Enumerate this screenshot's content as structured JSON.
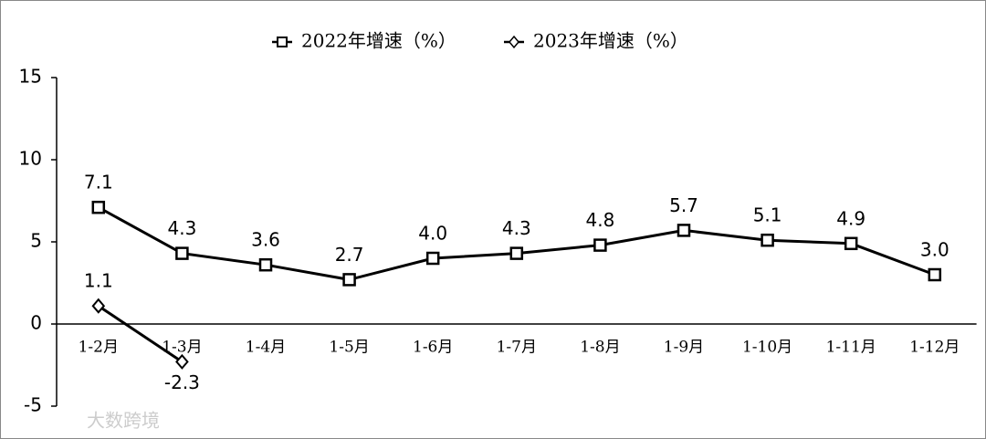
{
  "chart_data": {
    "type": "line",
    "categories": [
      "1-2月",
      "1-3月",
      "1-4月",
      "1-5月",
      "1-6月",
      "1-7月",
      "1-8月",
      "1-9月",
      "1-10月",
      "1-11月",
      "1-12月"
    ],
    "series": [
      {
        "name": "2022年增速（%）",
        "color": "#000000",
        "marker": "square",
        "values": [
          7.1,
          4.3,
          3.6,
          2.7,
          4.0,
          4.3,
          4.8,
          5.7,
          5.1,
          4.9,
          3.0
        ],
        "value_labels": [
          "7.1",
          "4.3",
          "3.6",
          "2.7",
          "4.0",
          "4.3",
          "4.8",
          "5.7",
          "5.1",
          "4.9",
          "3.0"
        ]
      },
      {
        "name": "2023年增速（%）",
        "color": "#000000",
        "marker": "diamond",
        "values": [
          1.1,
          -2.3,
          null,
          null,
          null,
          null,
          null,
          null,
          null,
          null,
          null
        ],
        "value_labels": [
          "1.1",
          "-2.3",
          null,
          null,
          null,
          null,
          null,
          null,
          null,
          null,
          null
        ]
      }
    ],
    "ylim": [
      -5,
      15
    ],
    "yticks": [
      -5,
      0,
      5,
      10,
      15
    ],
    "grid": false,
    "legend": "top",
    "watermark": "大数跨境"
  }
}
